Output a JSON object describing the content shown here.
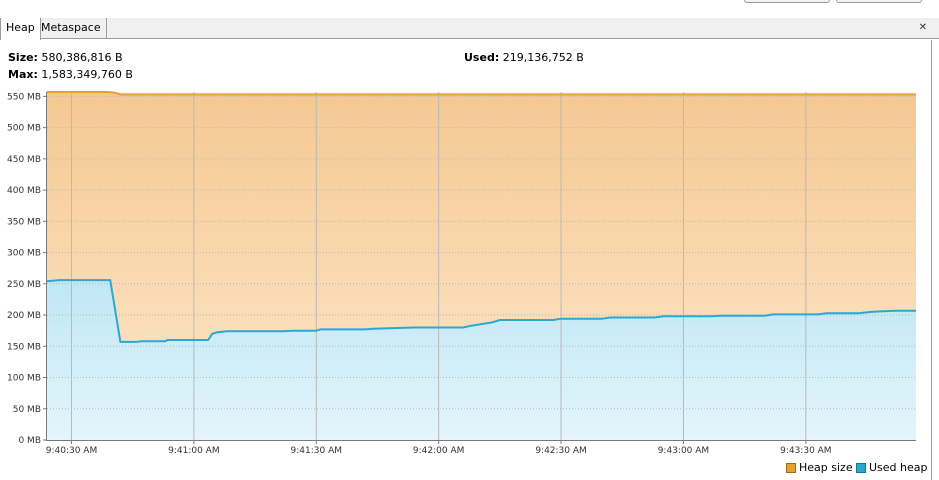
{
  "tabs": [
    {
      "label": "Heap",
      "active": true
    },
    {
      "label": "Metaspace",
      "active": false
    }
  ],
  "close_icon": "close-icon",
  "stats": {
    "size_label": "Size:",
    "size_value": "580,386,816 B",
    "max_label": "Max:",
    "max_value": "1,583,349,760 B",
    "used_label": "Used:",
    "used_value": "219,136,752 B"
  },
  "legend": {
    "heap_size": "Heap size",
    "used_heap": "Used heap"
  },
  "colors": {
    "heap_size_line": "#e8a033",
    "heap_fill_top": "#f5c892",
    "heap_fill_bottom": "#fde8cc",
    "used_line": "#29a9d2",
    "used_fill_top": "#bfe7f5",
    "used_fill_bottom": "#e4f5fb",
    "grid": "#b8b8b8"
  },
  "chart_data": {
    "type": "area",
    "ylim": [
      0,
      550
    ],
    "y_unit": "MB",
    "y_ticks": [
      "0 MB",
      "50 MB",
      "100 MB",
      "150 MB",
      "200 MB",
      "250 MB",
      "300 MB",
      "350 MB",
      "400 MB",
      "450 MB",
      "500 MB",
      "550 MB"
    ],
    "y_tick_values": [
      0,
      50,
      100,
      150,
      200,
      250,
      300,
      350,
      400,
      450,
      500,
      550
    ],
    "x_ticks": [
      "9:40:30 AM",
      "9:41:00 AM",
      "9:41:30 AM",
      "9:42:00 AM",
      "9:42:30 AM",
      "9:43:00 AM",
      "9:43:30 AM"
    ],
    "x_tick_seconds": [
      30,
      60,
      90,
      120,
      150,
      180,
      210
    ],
    "x_range_seconds": [
      24,
      237
    ],
    "x_origin_time": "9:40:00 AM",
    "series": [
      {
        "name": "Heap size",
        "x": [
          24,
          39,
          40.5,
          42,
          237
        ],
        "y": [
          557,
          557,
          556,
          553,
          553
        ]
      },
      {
        "name": "Used heap",
        "x": [
          24,
          27,
          39.5,
          42,
          46,
          47,
          53,
          53.5,
          63.5,
          64.5,
          65.5,
          68,
          82,
          84,
          90,
          91,
          102,
          104,
          114,
          126,
          128,
          131,
          133,
          135,
          148,
          150,
          160,
          162,
          173,
          175,
          187,
          189,
          200,
          202,
          213,
          215,
          223,
          226,
          229,
          232,
          237
        ],
        "y": [
          254,
          256,
          256,
          157,
          157,
          158,
          158,
          160,
          160,
          170,
          172,
          174,
          174,
          175,
          175,
          177,
          177,
          178,
          180,
          180,
          183,
          186,
          188,
          192,
          192,
          194,
          194,
          196,
          196,
          198,
          198,
          199,
          199,
          201,
          201,
          203,
          203,
          205,
          206,
          207,
          207
        ]
      }
    ]
  }
}
